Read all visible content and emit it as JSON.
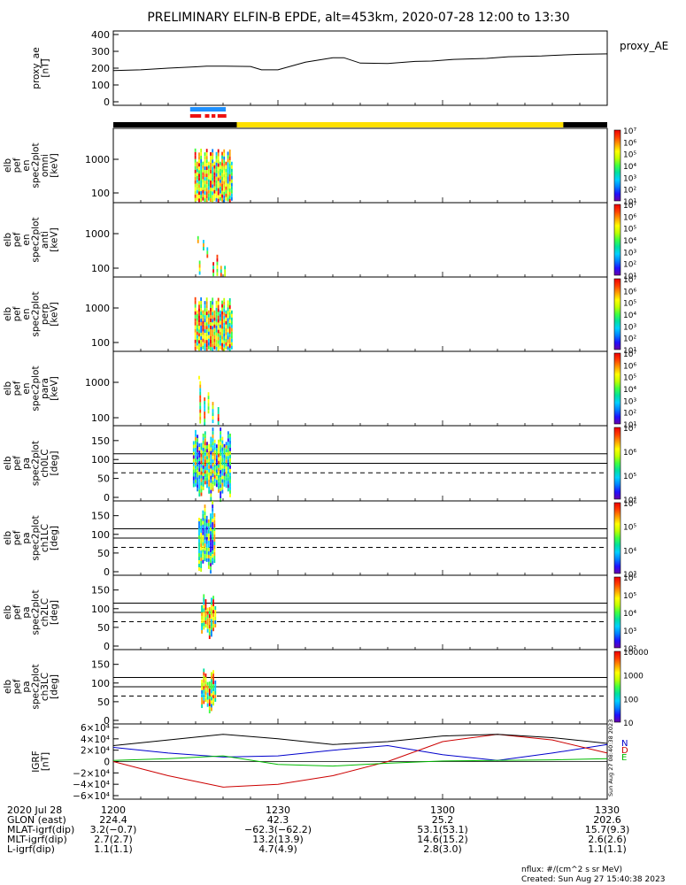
{
  "title": "PRELIMINARY ELFIN-B EPDE, alt=453km, 2020-07-28 12:00 to 13:30",
  "colors": {
    "frame": "#000000",
    "sci_zone": "#1e90ff",
    "sci_zone_red": "#ee1111",
    "day": "#ffe000",
    "night": "#000000",
    "bx": "#0000cc",
    "by": "#cc0000",
    "bz": "#00bb00",
    "bt": "#000000"
  },
  "chart_data": [
    {
      "type": "line",
      "id": "proxy_ae",
      "ylabel": [
        "proxy_ae",
        "[nT]"
      ],
      "ylim": [
        0,
        400
      ],
      "yticks": [
        "400",
        "300",
        "200",
        "100",
        "0"
      ],
      "series": [
        {
          "name": "proxy_AE",
          "x": [
            0,
            5,
            10,
            15,
            17,
            20,
            25,
            27,
            30,
            35,
            40,
            42,
            45,
            50,
            55,
            58,
            62,
            68,
            72,
            78,
            80,
            85,
            90
          ],
          "values": [
            185,
            190,
            200,
            208,
            212,
            212,
            210,
            190,
            190,
            235,
            262,
            262,
            230,
            228,
            240,
            242,
            252,
            258,
            268,
            272,
            276,
            282,
            285
          ]
        }
      ]
    },
    {
      "type": "heatmap",
      "id": "spec_omni",
      "ylabel": [
        "elb",
        "pef",
        "en",
        "spec2plot",
        "omni",
        "[keV]"
      ],
      "scale": "log",
      "yticks": [
        "1000",
        "100"
      ],
      "colorbar": {
        "label": "nflux",
        "ticks": [
          "10⁷",
          "10⁶",
          "10⁵",
          "10⁴",
          "10³",
          "10²",
          "10¹"
        ]
      }
    },
    {
      "type": "heatmap",
      "id": "spec_anti",
      "ylabel": [
        "elb",
        "pef",
        "en",
        "spec2plot",
        "anti",
        "[keV]"
      ],
      "scale": "log",
      "yticks": [
        "1000",
        "100"
      ],
      "colorbar": {
        "label": "nflux",
        "ticks": [
          "10⁷",
          "10⁶",
          "10⁵",
          "10⁴",
          "10³",
          "10²",
          "10¹"
        ]
      }
    },
    {
      "type": "heatmap",
      "id": "spec_perp",
      "ylabel": [
        "elb",
        "pef",
        "en",
        "spec2plot",
        "perp",
        "[keV]"
      ],
      "scale": "log",
      "yticks": [
        "1000",
        "100"
      ],
      "colorbar": {
        "label": "nflux",
        "ticks": [
          "10⁷",
          "10⁶",
          "10⁵",
          "10⁴",
          "10³",
          "10²",
          "10¹"
        ]
      }
    },
    {
      "type": "heatmap",
      "id": "spec_para",
      "ylabel": [
        "elb",
        "pef",
        "en",
        "spec2plot",
        "para",
        "[keV]"
      ],
      "scale": "log",
      "yticks": [
        "1000",
        "100"
      ],
      "colorbar": {
        "label": "nflux",
        "ticks": [
          "10⁷",
          "10⁶",
          "10⁵",
          "10⁴",
          "10³",
          "10²",
          "10¹"
        ]
      }
    },
    {
      "type": "heatmap",
      "id": "pa_ch0",
      "ylabel": [
        "elb",
        "pef",
        "pa",
        "spec2plot",
        "ch0LC",
        "[deg]"
      ],
      "ylim": [
        0,
        180
      ],
      "yticks": [
        "150",
        "100",
        "50",
        "0"
      ],
      "colorbar": {
        "label": "nflux",
        "ticks": [
          "10⁷",
          "10⁶",
          "10⁵",
          "10⁴"
        ]
      }
    },
    {
      "type": "heatmap",
      "id": "pa_ch1",
      "ylabel": [
        "elb",
        "pef",
        "pa",
        "spec2plot",
        "ch1LC",
        "[deg]"
      ],
      "ylim": [
        0,
        180
      ],
      "yticks": [
        "150",
        "100",
        "50",
        "0"
      ],
      "colorbar": {
        "label": "nflux",
        "ticks": [
          "10⁶",
          "10⁵",
          "10⁴",
          "10³"
        ]
      }
    },
    {
      "type": "heatmap",
      "id": "pa_ch2",
      "ylabel": [
        "elb",
        "pef",
        "pa",
        "spec2plot",
        "ch2LC",
        "[deg]"
      ],
      "ylim": [
        0,
        180
      ],
      "yticks": [
        "150",
        "100",
        "50",
        "0"
      ],
      "colorbar": {
        "label": "nflux",
        "ticks": [
          "10⁶",
          "10⁵",
          "10⁴",
          "10³",
          "10²"
        ]
      }
    },
    {
      "type": "heatmap",
      "id": "pa_ch3",
      "ylabel": [
        "elb",
        "pef",
        "pa",
        "spec2plot",
        "ch3LC",
        "[deg]"
      ],
      "ylim": [
        0,
        180
      ],
      "yticks": [
        "150",
        "100",
        "50",
        "0"
      ],
      "colorbar": {
        "label": "nflux",
        "ticks": [
          "10000",
          "1000",
          "100",
          "10"
        ]
      }
    },
    {
      "type": "line",
      "id": "igrf",
      "ylabel": [
        "IGRF",
        "[nT]"
      ],
      "ylim": [
        -60000,
        60000
      ],
      "yticks": [
        "6×10⁴",
        "4×10⁴",
        "2×10⁴",
        "0",
        "−2×10⁴",
        "−4×10⁴",
        "−6×10⁴"
      ],
      "legend": [
        "N",
        "D",
        "E"
      ],
      "side_text": "Sun Aug 27 08:40:38 2023",
      "series": [
        {
          "name": "N",
          "x": [
            0,
            10,
            20,
            30,
            40,
            50,
            60,
            70,
            80,
            90
          ],
          "values": [
            25000,
            15000,
            8000,
            10000,
            20000,
            28000,
            12000,
            2000,
            15000,
            30000
          ]
        },
        {
          "name": "D",
          "x": [
            0,
            10,
            20,
            30,
            40,
            50,
            60,
            70,
            80,
            90
          ],
          "values": [
            0,
            -25000,
            -45000,
            -40000,
            -25000,
            0,
            35000,
            48000,
            38000,
            15000
          ]
        },
        {
          "name": "E",
          "x": [
            0,
            10,
            20,
            30,
            40,
            50,
            60,
            70,
            80,
            90
          ],
          "values": [
            2000,
            5000,
            10000,
            -5000,
            -8000,
            -3000,
            1000,
            2000,
            3000,
            5000
          ]
        },
        {
          "name": "T",
          "x": [
            0,
            10,
            20,
            30,
            40,
            50,
            60,
            70,
            80,
            90
          ],
          "values": [
            28000,
            38000,
            48000,
            40000,
            30000,
            35000,
            45000,
            48000,
            42000,
            32000
          ]
        }
      ]
    }
  ],
  "xaxis": {
    "ticks": [
      "1200",
      "1230",
      "1300",
      "1330"
    ]
  },
  "footer_rows": [
    {
      "label": "2020 Jul 28",
      "values": [
        "1200",
        "",
        "",
        ""
      ]
    },
    {
      "label": "GLON (east)",
      "values": [
        "224.4",
        "42.3",
        "25.2",
        "202.6"
      ]
    },
    {
      "label": "MLAT-igrf(dip)",
      "values": [
        "3.2(−0.7)",
        "−62.3(−62.2)",
        "53.1(53.1)",
        "15.7(9.3)"
      ]
    },
    {
      "label": "MLT-igrf(dip)",
      "values": [
        "2.7(2.7)",
        "13.2(13.9)",
        "14.6(15.2)",
        "2.6(2.6)"
      ]
    },
    {
      "label": "L-igrf(dip)",
      "values": [
        "1.1(1.1)",
        "4.7(4.9)",
        "2.8(3.0)",
        "1.1(1.1)"
      ]
    }
  ],
  "notes": {
    "units": "nflux: #/(cm^2 s sr MeV)",
    "created": "Created: Sun Aug 27 15:40:38 2023"
  }
}
